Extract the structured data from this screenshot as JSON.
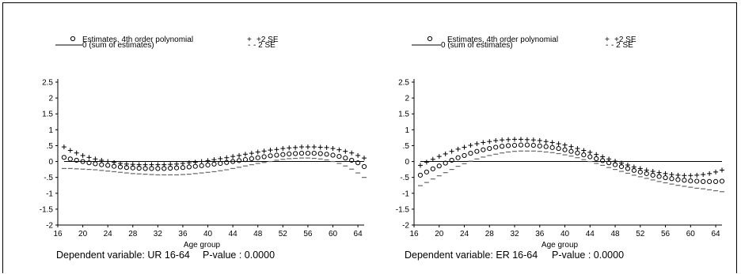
{
  "legend": {
    "estimates": "Estimates, 4th order polynomial",
    "zero": "0 (sum of estimates)",
    "plus": "+2 SE",
    "minus": "- 2 SE"
  },
  "chart_data": [
    {
      "type": "scatter",
      "xlabel": "Age group",
      "footer_dependent": "Dependent variable: UR 16-64",
      "footer_pvalue": "P-value : 0.0000",
      "xlim": [
        16,
        65
      ],
      "ylim": [
        -2,
        2.5
      ],
      "x_ticks": [
        16,
        20,
        24,
        28,
        32,
        36,
        40,
        44,
        48,
        52,
        56,
        60,
        64
      ],
      "y_ticks": [
        "-2",
        "-1.5",
        "-1",
        "-.5",
        "0",
        ".5",
        "1",
        "1.5",
        "2",
        "2.5"
      ],
      "x_start": 17,
      "x_end": 65,
      "series": [
        {
          "name": "Estimates, 4th order polynomial",
          "marker": "circle",
          "values": [
            0.13,
            0.08,
            0.04,
            0.0,
            -0.04,
            -0.07,
            -0.1,
            -0.12,
            -0.15,
            -0.17,
            -0.19,
            -0.2,
            -0.21,
            -0.22,
            -0.22,
            -0.22,
            -0.22,
            -0.21,
            -0.2,
            -0.19,
            -0.17,
            -0.15,
            -0.13,
            -0.11,
            -0.08,
            -0.06,
            -0.03,
            0.0,
            0.03,
            0.06,
            0.09,
            0.12,
            0.15,
            0.18,
            0.2,
            0.22,
            0.24,
            0.25,
            0.26,
            0.26,
            0.26,
            0.25,
            0.23,
            0.2,
            0.16,
            0.11,
            0.04,
            -0.04,
            -0.16
          ]
        },
        {
          "name": "+2 SE",
          "marker": "plus",
          "values": [
            0.46,
            0.35,
            0.27,
            0.19,
            0.13,
            0.08,
            0.04,
            0.0,
            -0.03,
            -0.06,
            -0.08,
            -0.09,
            -0.1,
            -0.1,
            -0.1,
            -0.1,
            -0.1,
            -0.09,
            -0.08,
            -0.06,
            -0.04,
            -0.02,
            0.0,
            0.03,
            0.06,
            0.09,
            0.12,
            0.16,
            0.19,
            0.23,
            0.26,
            0.3,
            0.33,
            0.36,
            0.38,
            0.41,
            0.43,
            0.44,
            0.46,
            0.46,
            0.46,
            0.45,
            0.44,
            0.41,
            0.37,
            0.32,
            0.27,
            0.19,
            0.11
          ]
        },
        {
          "name": "- 2 SE",
          "marker": "dash",
          "values": [
            -0.22,
            -0.22,
            -0.23,
            -0.24,
            -0.25,
            -0.26,
            -0.28,
            -0.3,
            -0.32,
            -0.34,
            -0.36,
            -0.38,
            -0.39,
            -0.4,
            -0.41,
            -0.42,
            -0.42,
            -0.42,
            -0.42,
            -0.41,
            -0.4,
            -0.38,
            -0.36,
            -0.34,
            -0.32,
            -0.29,
            -0.26,
            -0.22,
            -0.18,
            -0.14,
            -0.1,
            -0.06,
            -0.03,
            0.0,
            0.04,
            0.07,
            0.09,
            0.1,
            0.11,
            0.11,
            0.1,
            0.08,
            0.05,
            0.0,
            -0.06,
            -0.14,
            -0.24,
            -0.36,
            -0.5
          ]
        }
      ]
    },
    {
      "type": "scatter",
      "xlabel": "Age group",
      "footer_dependent": "Dependent variable: ER 16-64",
      "footer_pvalue": "P-value : 0.0000",
      "xlim": [
        16,
        65
      ],
      "ylim": [
        -2,
        2.5
      ],
      "x_ticks": [
        16,
        20,
        24,
        28,
        32,
        36,
        40,
        44,
        48,
        52,
        56,
        60,
        64
      ],
      "y_ticks": [
        "-2",
        "-1.5",
        "-1",
        "-.5",
        "0",
        ".5",
        "1",
        "1.5",
        "2",
        "2.5"
      ],
      "x_start": 17,
      "x_end": 65,
      "series": [
        {
          "name": "Estimates, 4th order polynomial",
          "marker": "circle",
          "values": [
            -0.43,
            -0.33,
            -0.23,
            -0.14,
            -0.05,
            0.04,
            0.12,
            0.19,
            0.26,
            0.32,
            0.37,
            0.41,
            0.45,
            0.48,
            0.5,
            0.51,
            0.52,
            0.52,
            0.51,
            0.49,
            0.47,
            0.44,
            0.41,
            0.37,
            0.32,
            0.27,
            0.21,
            0.15,
            0.09,
            0.03,
            -0.04,
            -0.1,
            -0.16,
            -0.22,
            -0.28,
            -0.33,
            -0.38,
            -0.43,
            -0.47,
            -0.51,
            -0.54,
            -0.57,
            -0.59,
            -0.61,
            -0.62,
            -0.63,
            -0.63,
            -0.63,
            -0.62
          ]
        },
        {
          "name": "+2 SE",
          "marker": "plus",
          "values": [
            -0.12,
            -0.02,
            0.07,
            0.16,
            0.24,
            0.32,
            0.39,
            0.45,
            0.51,
            0.56,
            0.6,
            0.63,
            0.66,
            0.68,
            0.69,
            0.7,
            0.7,
            0.69,
            0.68,
            0.66,
            0.63,
            0.6,
            0.56,
            0.52,
            0.47,
            0.41,
            0.35,
            0.29,
            0.22,
            0.15,
            0.08,
            0.01,
            -0.05,
            -0.11,
            -0.17,
            -0.22,
            -0.27,
            -0.31,
            -0.35,
            -0.38,
            -0.41,
            -0.43,
            -0.44,
            -0.44,
            -0.43,
            -0.41,
            -0.38,
            -0.33,
            -0.27
          ]
        },
        {
          "name": "- 2 SE",
          "marker": "dash",
          "values": [
            -0.76,
            -0.66,
            -0.55,
            -0.45,
            -0.35,
            -0.25,
            -0.15,
            -0.07,
            0.01,
            0.08,
            0.14,
            0.19,
            0.23,
            0.27,
            0.3,
            0.32,
            0.33,
            0.33,
            0.33,
            0.32,
            0.3,
            0.28,
            0.25,
            0.21,
            0.17,
            0.12,
            0.06,
            0.0,
            -0.06,
            -0.12,
            -0.19,
            -0.25,
            -0.31,
            -0.37,
            -0.43,
            -0.48,
            -0.53,
            -0.58,
            -0.63,
            -0.67,
            -0.71,
            -0.75,
            -0.78,
            -0.81,
            -0.84,
            -0.86,
            -0.89,
            -0.92,
            -0.95
          ]
        }
      ]
    }
  ]
}
